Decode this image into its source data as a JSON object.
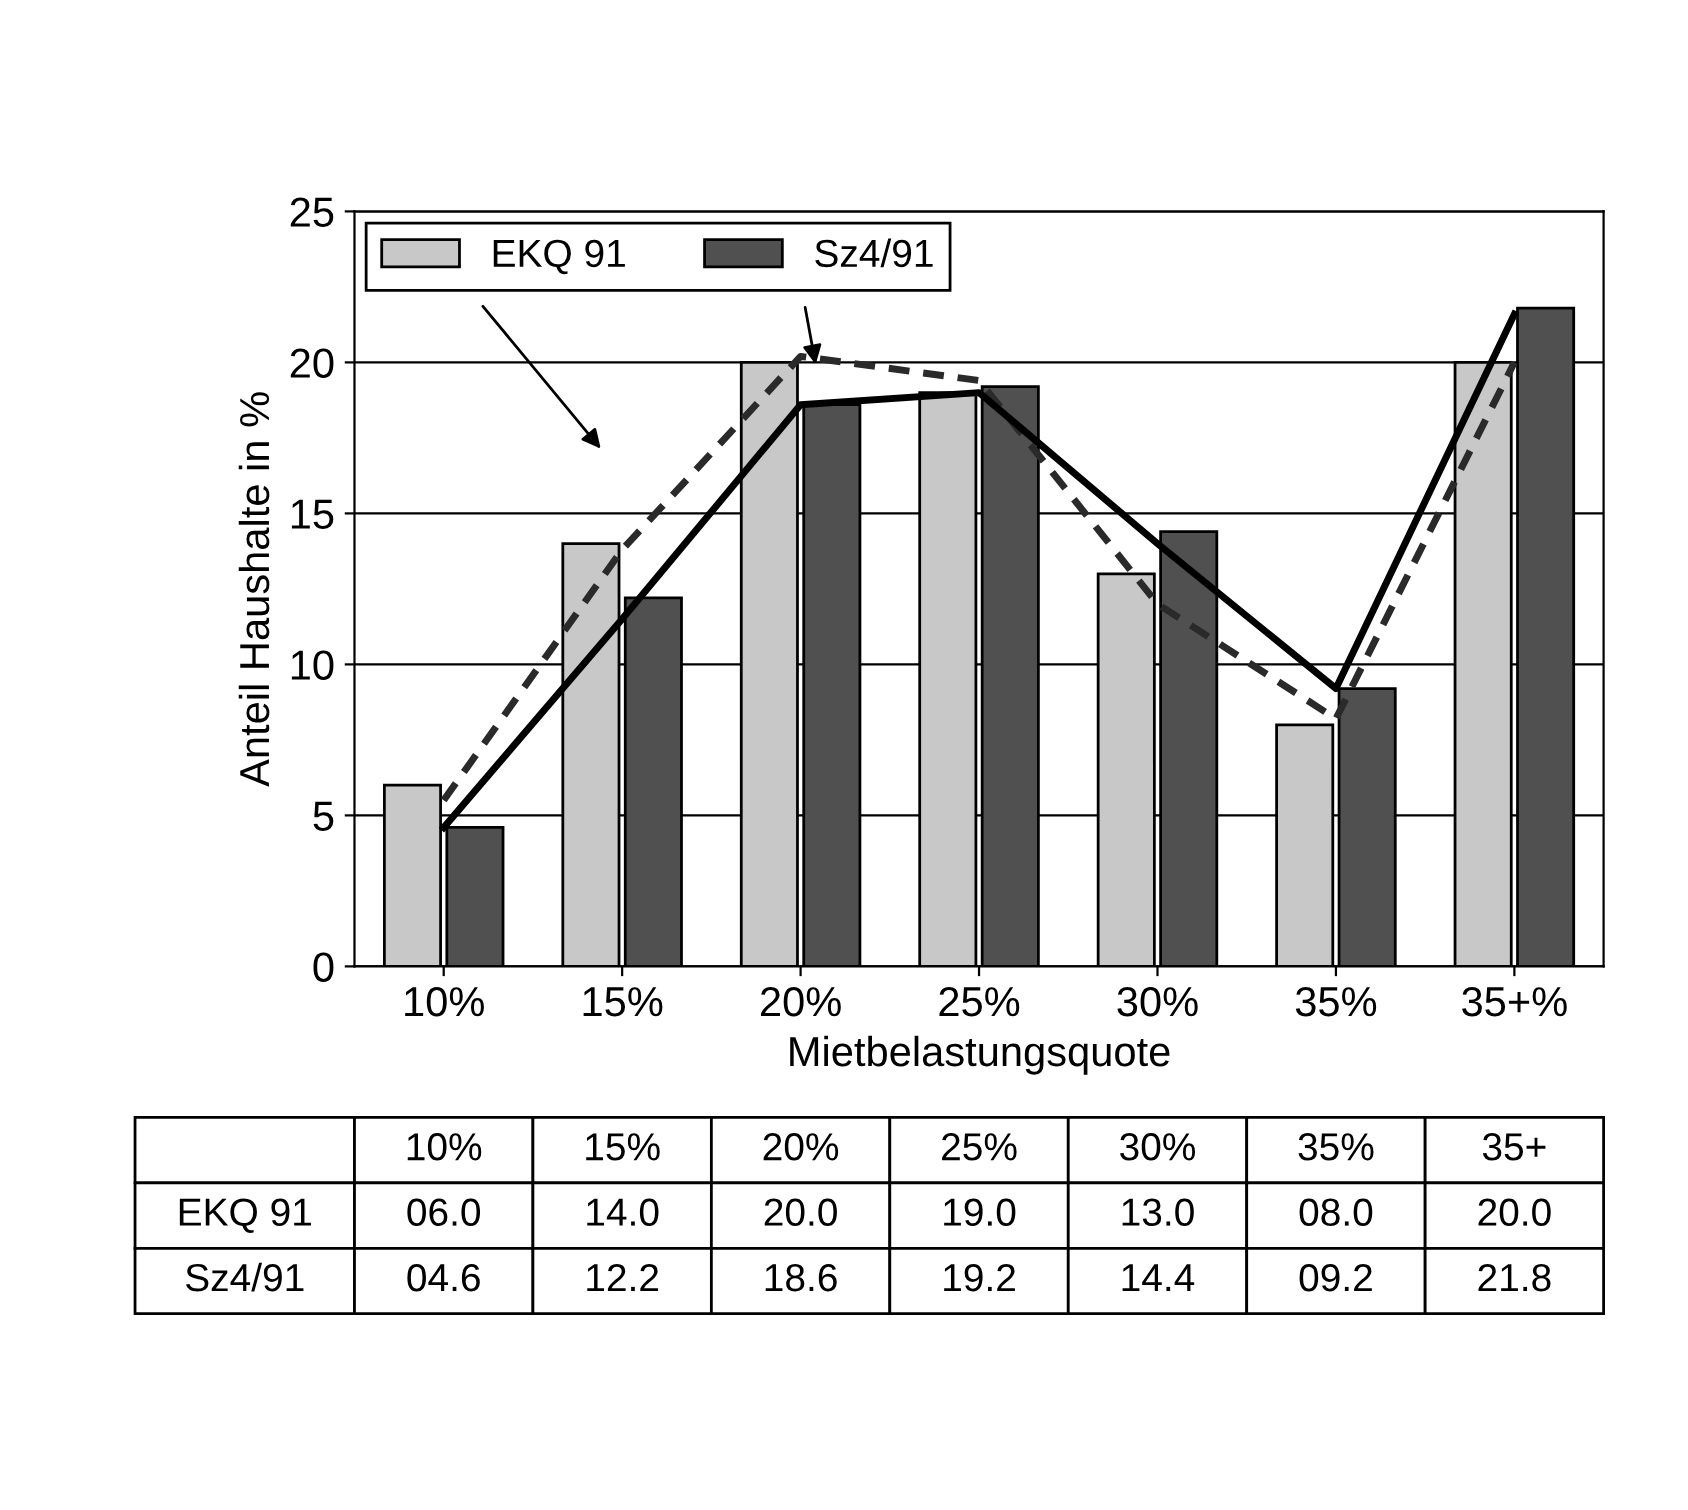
{
  "chart_data": {
    "type": "bar",
    "xlabel": "Mietbelastungsquote",
    "ylabel": "Anteil Haushalte in %",
    "categories": [
      "10%",
      "15%",
      "20%",
      "25%",
      "30%",
      "35%",
      "35+%"
    ],
    "series": [
      {
        "name": "EKQ 91",
        "color": "#c8c8c8",
        "values": [
          6.0,
          14.0,
          20.0,
          19.0,
          13.0,
          8.0,
          20.0
        ],
        "value_labels": [
          "06.0",
          "14.0",
          "20.0",
          "19.0",
          "13.0",
          "08.0",
          "20.0"
        ]
      },
      {
        "name": "Sz4/91",
        "color": "#505050",
        "values": [
          4.6,
          12.2,
          18.6,
          19.2,
          14.4,
          9.2,
          21.8
        ],
        "value_labels": [
          "04.6",
          "12.2",
          "18.6",
          "19.2",
          "14.4",
          "09.2",
          "21.8"
        ]
      },
      {
        "type": "line",
        "color": "#2a2a2a",
        "line_style": "dashed",
        "values": [
          5.5,
          13.8,
          20.2,
          19.4,
          12.0,
          8.2,
          20.0
        ]
      },
      {
        "type": "line",
        "color": "#000000",
        "line_style": "solid",
        "values": [
          4.6,
          11.5,
          18.6,
          19.0,
          14.0,
          9.2,
          21.6
        ]
      }
    ],
    "annotations": [
      "10%",
      "15%",
      "20%",
      "25%",
      "30%",
      "35%",
      "35+"
    ],
    "ylim": [
      0,
      25
    ],
    "yticks": [
      0,
      5,
      10,
      15,
      20,
      25
    ],
    "grid": "y",
    "legend": "top left"
  }
}
